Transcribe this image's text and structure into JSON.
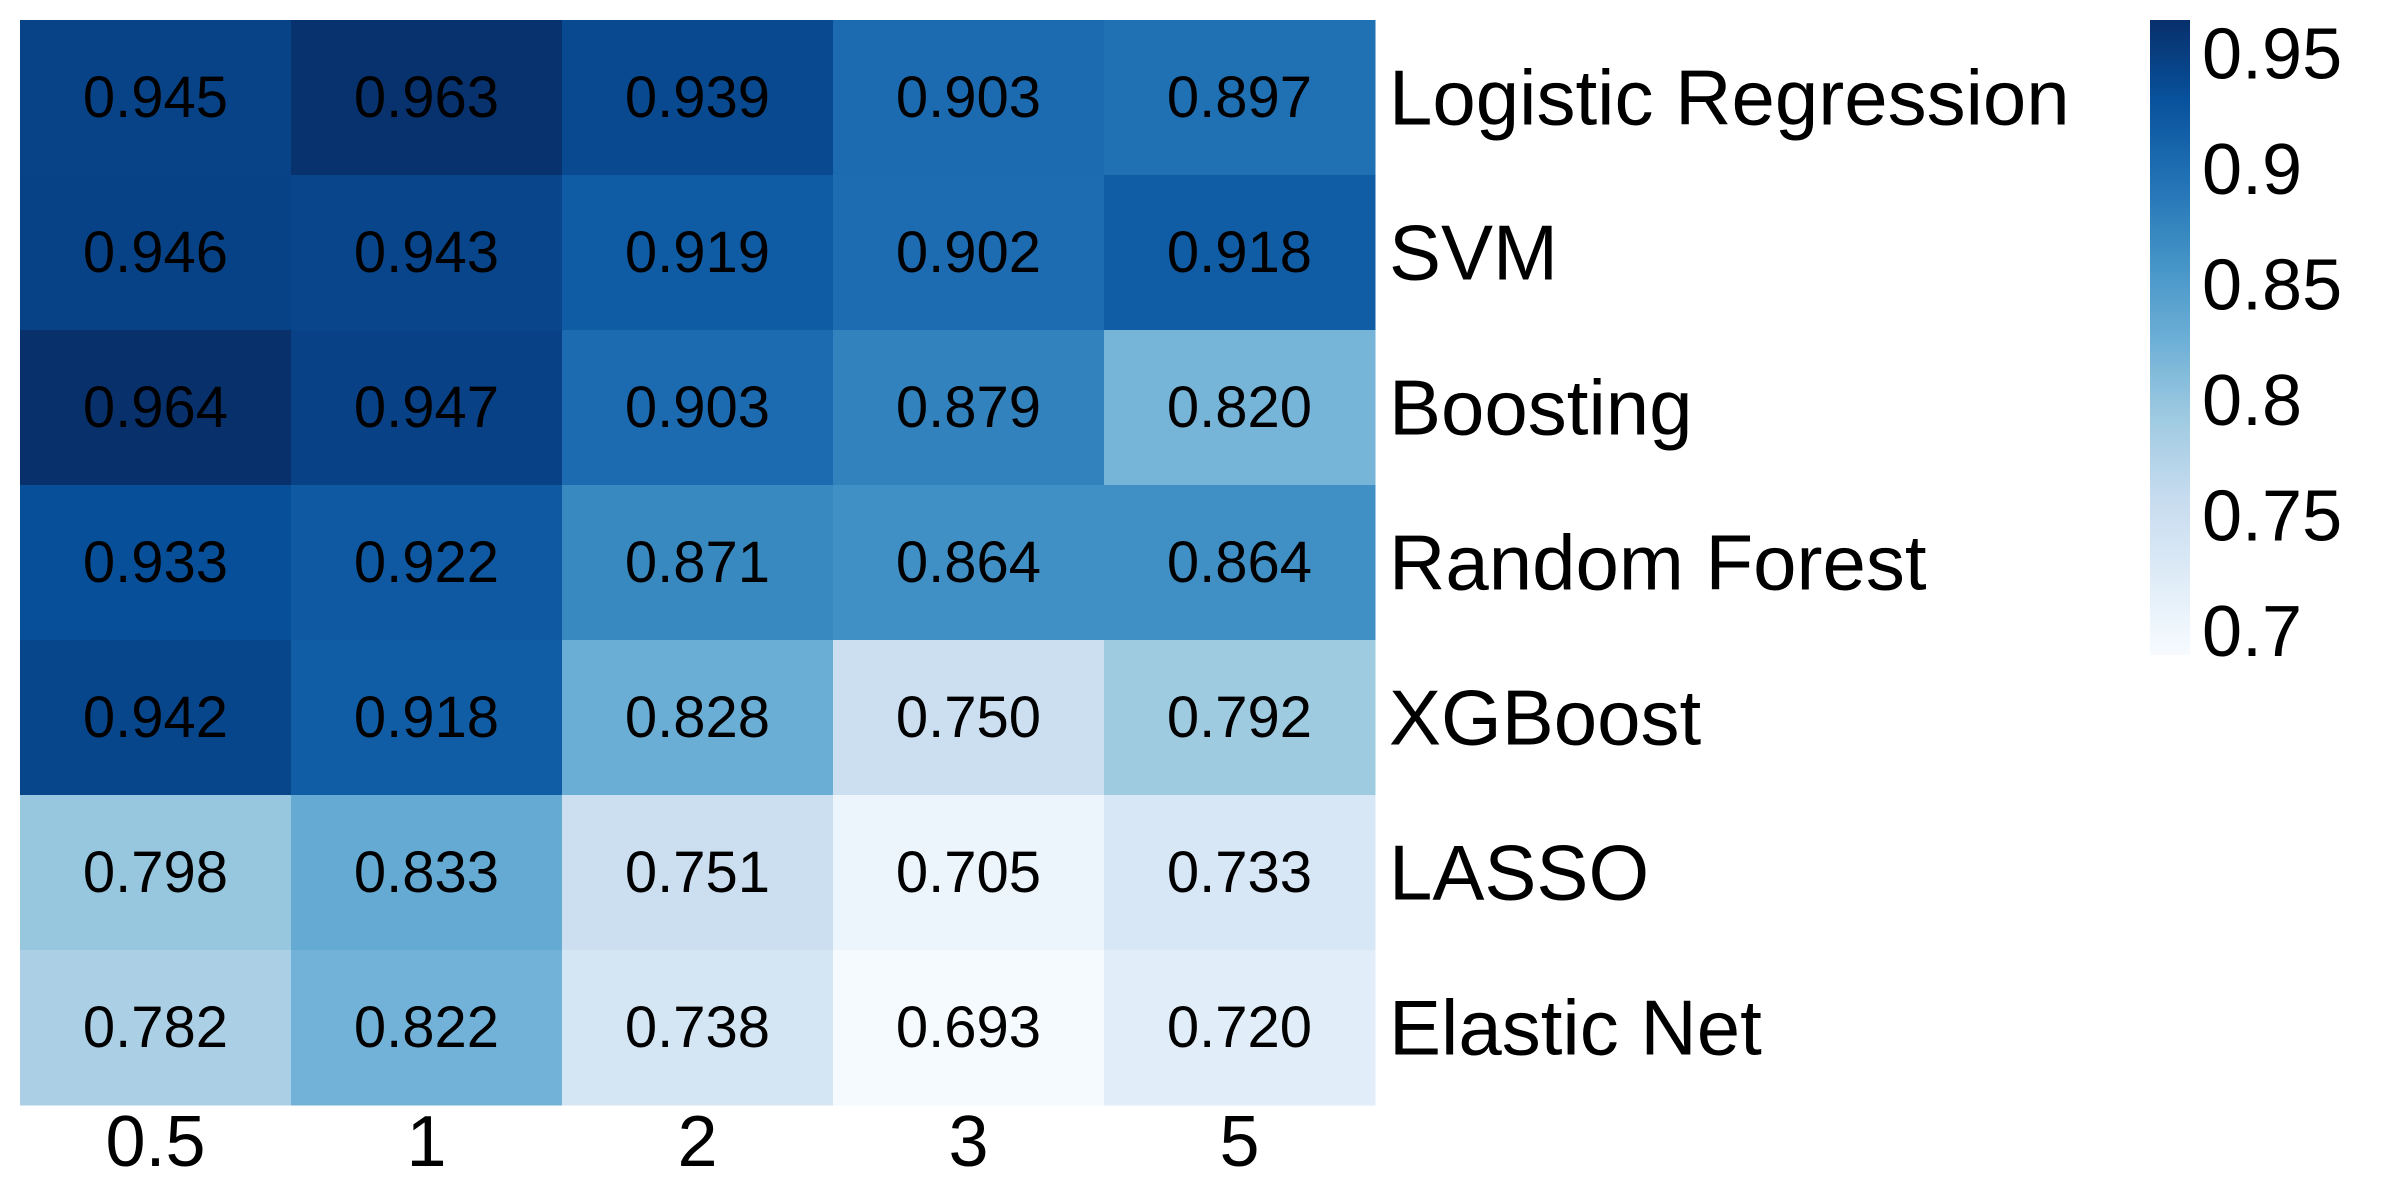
{
  "chart_data": {
    "type": "heatmap",
    "x": [
      "0.5",
      "1",
      "2",
      "3",
      "5"
    ],
    "y": [
      "Logistic Regression",
      "SVM",
      "Boosting",
      "Random Forest",
      "XGBoost",
      "LASSO",
      "Elastic Net"
    ],
    "values": [
      [
        0.945,
        0.963,
        0.939,
        0.903,
        0.897
      ],
      [
        0.946,
        0.943,
        0.919,
        0.902,
        0.918
      ],
      [
        0.964,
        0.947,
        0.903,
        0.879,
        0.82
      ],
      [
        0.933,
        0.922,
        0.871,
        0.864,
        0.864
      ],
      [
        0.942,
        0.918,
        0.828,
        0.75,
        0.792
      ],
      [
        0.798,
        0.833,
        0.751,
        0.705,
        0.733
      ],
      [
        0.782,
        0.822,
        0.738,
        0.693,
        0.72
      ]
    ],
    "value_labels": [
      [
        "0.945",
        "0.963",
        "0.939",
        "0.903",
        "0.897"
      ],
      [
        "0.946",
        "0.943",
        "0.919",
        "0.902",
        "0.918"
      ],
      [
        "0.964",
        "0.947",
        "0.903",
        "0.879",
        "0.820"
      ],
      [
        "0.933",
        "0.922",
        "0.871",
        "0.864",
        "0.864"
      ],
      [
        "0.942",
        "0.918",
        "0.828",
        "0.750",
        "0.792"
      ],
      [
        "0.798",
        "0.833",
        "0.751",
        "0.705",
        "0.733"
      ],
      [
        "0.782",
        "0.822",
        "0.738",
        "0.693",
        "0.720"
      ]
    ],
    "title": "",
    "xlabel": "",
    "ylabel": "",
    "y_label_side": "right",
    "colorbar": {
      "range": [
        0.69,
        0.965
      ],
      "ticks": [
        0.7,
        0.75,
        0.8,
        0.85,
        0.9,
        0.95
      ],
      "tick_labels": [
        "0.7",
        "0.75",
        "0.8",
        "0.85",
        "0.9",
        "0.95"
      ],
      "placement": "right",
      "colormap": "Blues",
      "colors": [
        "#f7fbff",
        "#deebf7",
        "#c6dbef",
        "#9ecae1",
        "#6baed6",
        "#4292c6",
        "#2171b5",
        "#08519c",
        "#08306b"
      ]
    },
    "grid": false,
    "legend": "none"
  }
}
